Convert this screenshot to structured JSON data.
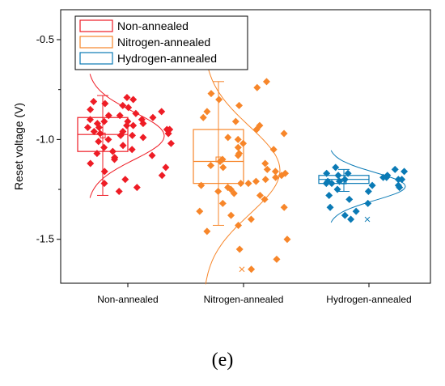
{
  "chart_data": {
    "type": "box-scatter",
    "ylabel": "Reset voltage (V)",
    "xlabel": "",
    "ylim": [
      -1.72,
      -0.35
    ],
    "yticks": [
      -1.5,
      -1.0,
      -0.5
    ],
    "ytick_labels": [
      "-1.5",
      "-1.0",
      "-0.5"
    ],
    "categories": [
      "Non-annealed",
      "Nitrogen-annealed",
      "Hydrogen-annealed"
    ],
    "legend": {
      "placement": "top-left",
      "entries": [
        "Non-annealed",
        "Nitrogen-annealed",
        "Hydrogen-annealed"
      ]
    },
    "colors": {
      "Non-annealed": "#ee1c25",
      "Nitrogen-annealed": "#f7862a",
      "Hydrogen-annealed": "#0a7ab5"
    },
    "series": [
      {
        "name": "Non-annealed",
        "box": {
          "q1": -1.06,
          "median": -0.975,
          "q3": -0.89,
          "whisker_low": -1.28,
          "whisker_high": -0.78,
          "mean": -0.98
        },
        "points": [
          -0.79,
          -0.8,
          -0.81,
          -0.82,
          -0.83,
          -0.84,
          -0.85,
          -0.86,
          -0.87,
          -0.88,
          -0.88,
          -0.89,
          -0.9,
          -0.9,
          -0.91,
          -0.91,
          -0.92,
          -0.92,
          -0.93,
          -0.93,
          -0.94,
          -0.94,
          -0.95,
          -0.95,
          -0.96,
          -0.96,
          -0.97,
          -0.97,
          -0.98,
          -0.98,
          -0.99,
          -1.0,
          -1.01,
          -1.02,
          -1.03,
          -1.04,
          -1.05,
          -1.06,
          -1.07,
          -1.08,
          -1.09,
          -1.1,
          -1.12,
          -1.14,
          -1.16,
          -1.18,
          -1.2,
          -1.22,
          -1.24,
          -1.26
        ]
      },
      {
        "name": "Nitrogen-annealed",
        "box": {
          "q1": -1.22,
          "median": -1.11,
          "q3": -0.95,
          "whisker_low": -1.43,
          "whisker_high": -0.71,
          "mean": -1.1
        },
        "points": [
          -0.71,
          -0.74,
          -0.77,
          -0.8,
          -0.83,
          -0.86,
          -0.89,
          -0.91,
          -0.93,
          -0.95,
          -0.97,
          -0.99,
          -1.0,
          -1.02,
          -1.04,
          -1.05,
          -1.07,
          -1.08,
          -1.1,
          -1.11,
          -1.12,
          -1.13,
          -1.14,
          -1.15,
          -1.16,
          -1.17,
          -1.18,
          -1.19,
          -1.2,
          -1.21,
          -1.22,
          -1.23,
          -1.24,
          -1.25,
          -1.26,
          -1.27,
          -1.28,
          -1.3,
          -1.32,
          -1.34,
          -1.36,
          -1.38,
          -1.4,
          -1.43,
          -1.46,
          -1.5,
          -1.55,
          -1.6,
          -1.65,
          -1.22
        ],
        "outliers": [
          -1.65
        ]
      },
      {
        "name": "Hydrogen-annealed",
        "box": {
          "q1": -1.22,
          "median": -1.2,
          "q3": -1.18,
          "whisker_low": -1.26,
          "whisker_high": -1.15,
          "mean": -1.21
        },
        "points": [
          -1.14,
          -1.15,
          -1.16,
          -1.17,
          -1.17,
          -1.18,
          -1.18,
          -1.19,
          -1.19,
          -1.2,
          -1.2,
          -1.2,
          -1.21,
          -1.21,
          -1.22,
          -1.22,
          -1.23,
          -1.23,
          -1.24,
          -1.25,
          -1.26,
          -1.28,
          -1.3,
          -1.32,
          -1.34,
          -1.36,
          -1.38,
          -1.4
        ],
        "outliers": [
          -1.4
        ]
      }
    ]
  },
  "panel_label": "(e)"
}
